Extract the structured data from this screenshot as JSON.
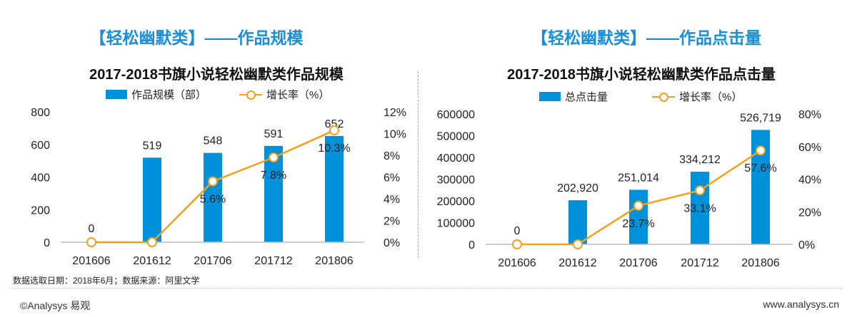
{
  "colors": {
    "bar": "#0091db",
    "line": "#f5a01a",
    "header": "#1a8fd8"
  },
  "footer": {
    "note": "数据选取日期：2018年6月；数据来源：阿里文学",
    "copyright": "©Analysys 易观",
    "url": "www.analysys.cn"
  },
  "chart_data": [
    {
      "type": "bar",
      "header": "【轻松幽默类】——作品规模",
      "title": "2017-2018书旗小说轻松幽默类作品规模",
      "categories": [
        "201606",
        "201612",
        "201706",
        "201712",
        "201806"
      ],
      "series": [
        {
          "name": "作品规模（部）",
          "type": "bar",
          "axis": "left",
          "values": [
            0,
            519,
            548,
            591,
            652
          ],
          "labels": [
            "0",
            "519",
            "548",
            "591",
            "652"
          ]
        },
        {
          "name": "增长率（%）",
          "type": "line",
          "axis": "right",
          "values": [
            0,
            0,
            5.6,
            7.8,
            10.3
          ],
          "labels": [
            "",
            "",
            "5.6%",
            "7.8%",
            "10.3%"
          ]
        }
      ],
      "ylim": [
        0,
        800
      ],
      "yticks": [
        "0",
        "200",
        "400",
        "600",
        "800"
      ],
      "y2lim": [
        0,
        12
      ],
      "y2ticks": [
        "0%",
        "2%",
        "4%",
        "6%",
        "8%",
        "10%",
        "12%"
      ],
      "legend": "top",
      "grid": false
    },
    {
      "type": "bar",
      "header": "【轻松幽默类】——作品点击量",
      "title": "2017-2018书旗小说轻松幽默类作品点击量",
      "categories": [
        "201606",
        "201612",
        "201706",
        "201712",
        "201806"
      ],
      "series": [
        {
          "name": "总点击量",
          "type": "bar",
          "axis": "left",
          "values": [
            0,
            202920,
            251014,
            334212,
            526719
          ],
          "labels": [
            "0",
            "202,920",
            "251,014",
            "334,212",
            "526,719"
          ]
        },
        {
          "name": "增长率（%）",
          "type": "line",
          "axis": "right",
          "values": [
            0,
            0,
            23.7,
            33.1,
            57.6
          ],
          "labels": [
            "",
            "",
            "23.7%",
            "33.1%",
            "57.6%"
          ]
        }
      ],
      "ylim": [
        0,
        600000
      ],
      "yticks": [
        "0",
        "100000",
        "200000",
        "300000",
        "400000",
        "500000",
        "600000"
      ],
      "y2lim": [
        0,
        80
      ],
      "y2ticks": [
        "0%",
        "20%",
        "40%",
        "60%",
        "80%"
      ],
      "legend": "top",
      "grid": false
    }
  ]
}
